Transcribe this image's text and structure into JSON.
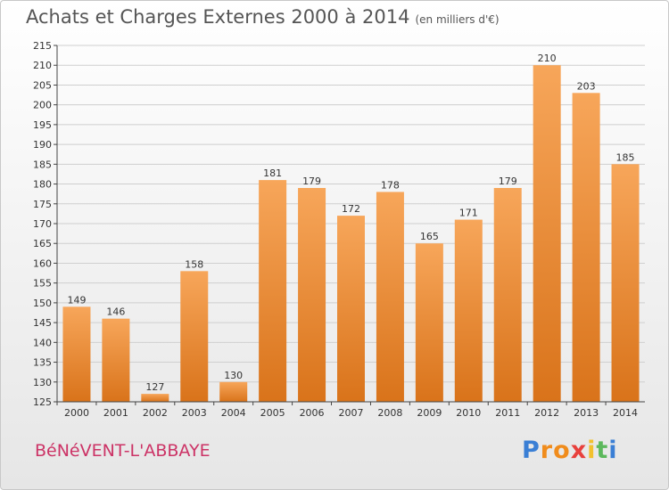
{
  "chart_title": "Achats et Charges Externes 2000 à 2014",
  "chart_subtitle": "(en milliers d'€)",
  "location_label": "BéNéVENT-L'ABBAYE",
  "brand": {
    "letters": [
      "P",
      "r",
      "o",
      "x",
      "i",
      "t",
      "i"
    ],
    "colors": [
      "#3a7fd5",
      "#f08c1c",
      "#f08c1c",
      "#e8403c",
      "#f2c12e",
      "#5cb85c",
      "#3a7fd5"
    ]
  },
  "colors": {
    "bar_top": "#f7a65a",
    "bar_bottom": "#d9731a",
    "axis": "#444444",
    "grid": "#cfcfcf"
  },
  "chart_data": {
    "type": "bar",
    "title": "Achats et Charges Externes 2000 à 2014",
    "subtitle": "(en milliers d'€)",
    "xlabel": "",
    "ylabel": "",
    "categories": [
      "2000",
      "2001",
      "2002",
      "2003",
      "2004",
      "2005",
      "2006",
      "2007",
      "2008",
      "2009",
      "2010",
      "2011",
      "2012",
      "2013",
      "2014"
    ],
    "values": [
      149,
      146,
      127,
      158,
      130,
      181,
      179,
      172,
      178,
      165,
      171,
      179,
      210,
      203,
      185
    ],
    "ylim": [
      125,
      215
    ],
    "yticks": [
      125,
      130,
      135,
      140,
      145,
      150,
      155,
      160,
      165,
      170,
      175,
      180,
      185,
      190,
      195,
      200,
      205,
      210,
      215
    ],
    "grid": true,
    "legend": "none"
  }
}
